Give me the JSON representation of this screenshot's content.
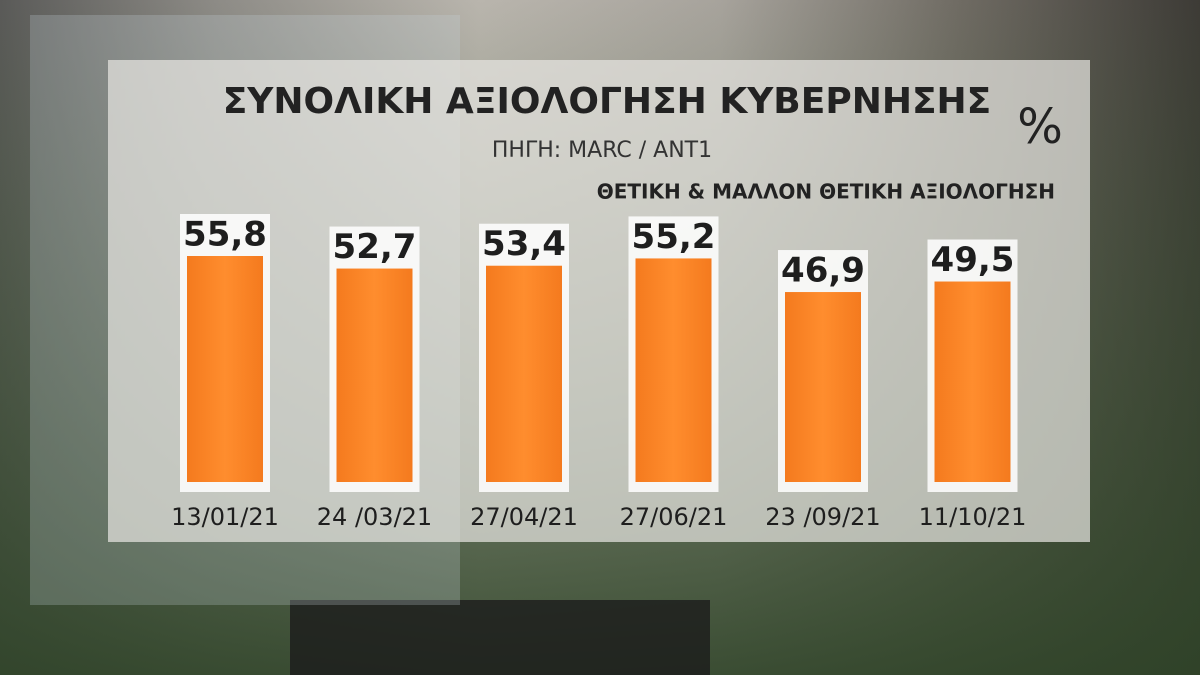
{
  "chart_data": {
    "type": "bar",
    "title": "ΣΥΝΟΛΙΚΗ ΑΞΙΟΛΟΓΗΣΗ ΚΥΒΕΡΝΗΣΗΣ",
    "source": "ΠΗΓΗ: MARC / ANT1",
    "unit": "%",
    "subtitle": "ΘΕΤΙΚΗ & ΜΑΛΛΟΝ ΘΕΤΙΚΗ ΑΞΙΟΛΟΓΗΣΗ",
    "categories": [
      "13/01/21",
      "24 /03/21",
      "27/04/21",
      "27/06/21",
      "23 /09/21",
      "11/10/21"
    ],
    "values": [
      55.8,
      52.7,
      53.4,
      55.2,
      46.9,
      49.5
    ],
    "value_labels": [
      "55,8",
      "52,7",
      "53,4",
      "55,2",
      "46,9",
      "49,5"
    ],
    "color": "#f7811f"
  }
}
